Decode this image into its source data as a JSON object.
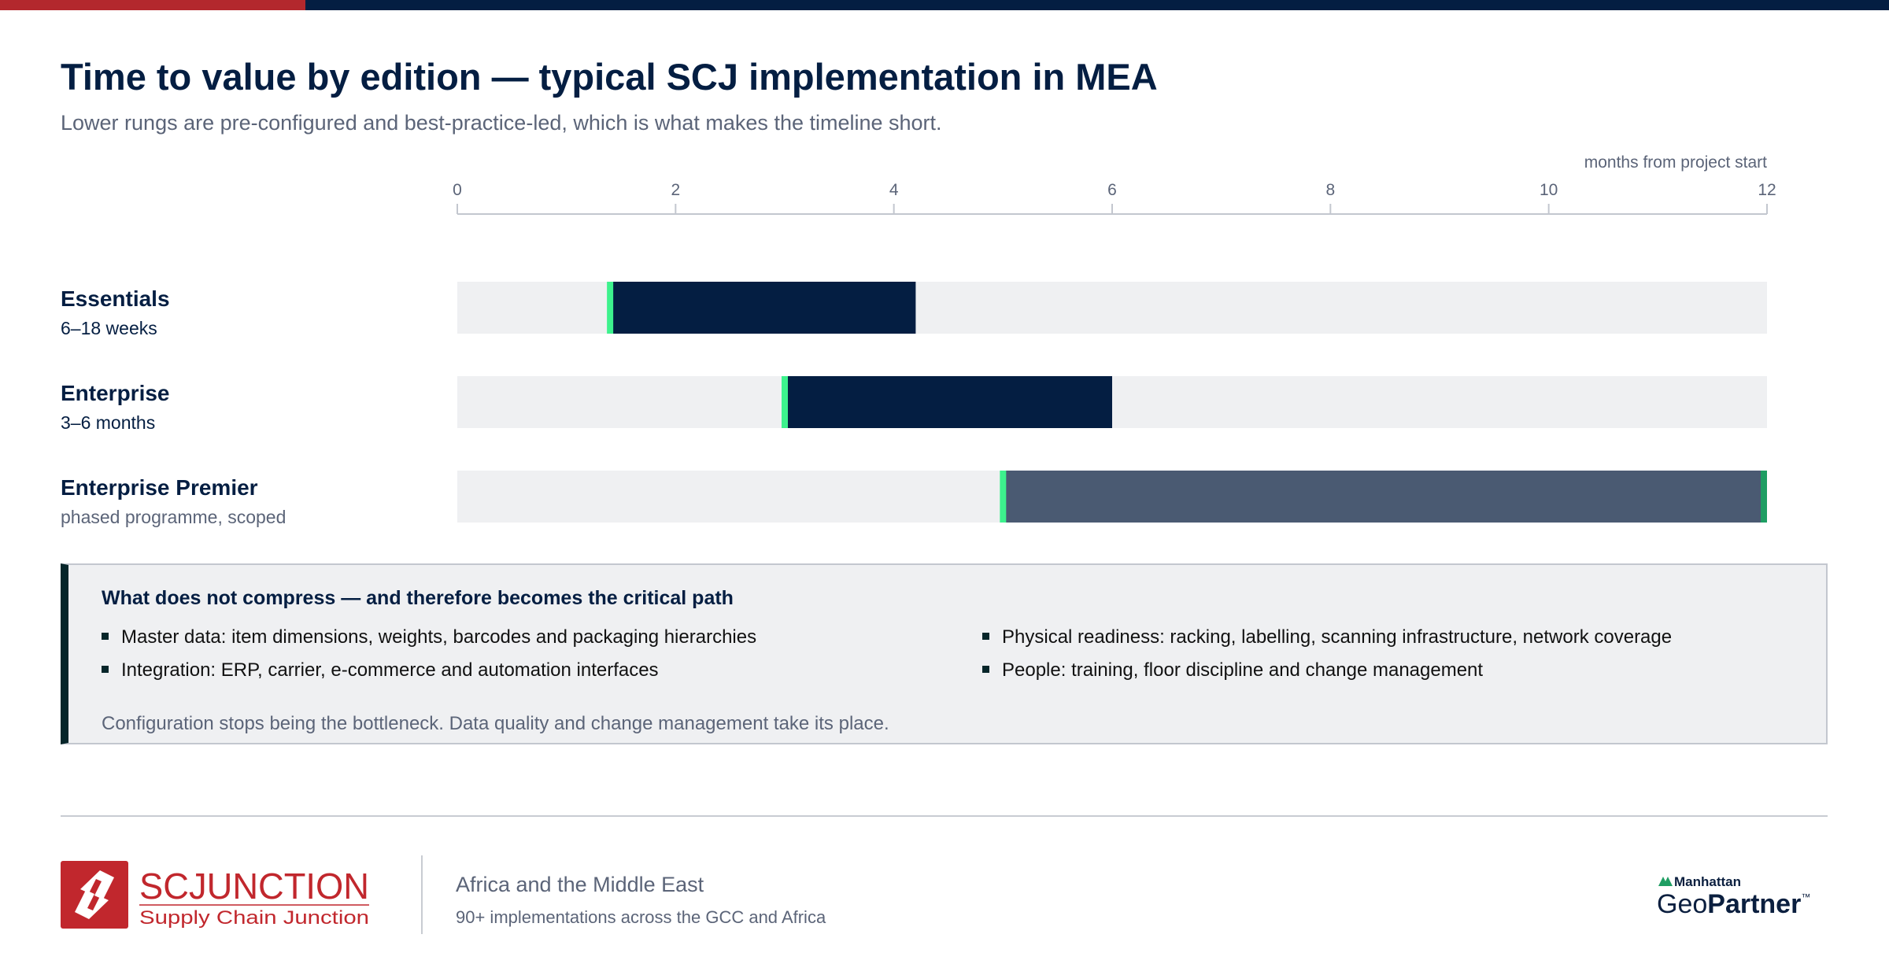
{
  "title": "Time to value by edition — typical SCJ implementation in MEA",
  "subtitle": "Lower rungs are pre-configured and best-practice-led, which is what makes the timeline short.",
  "chart_data": {
    "type": "bar",
    "orientation": "horizontal",
    "axis_label": "months from project start",
    "xlim": [
      0,
      12
    ],
    "ticks": [
      0,
      2,
      4,
      6,
      8,
      10,
      12
    ],
    "grid": false,
    "categories": [
      "Essentials",
      "Enterprise",
      "Enterprise Premier"
    ],
    "descriptions": [
      "6–18 weeks",
      "3–6 months",
      "phased programme, scoped"
    ],
    "ranges": [
      {
        "start": 1.4,
        "end": 4.2
      },
      {
        "start": 3.0,
        "end": 6.0
      },
      {
        "start": 5.0,
        "end": 12.0
      }
    ],
    "colors": {
      "track": "#eff0f2",
      "bar": "#041e42",
      "bar_phased": "#4a5a72",
      "start_marker": "#3df28d",
      "end_marker": "#1f9e63"
    }
  },
  "callout": {
    "title": "What does not compress — and therefore becomes the critical path",
    "bullets": [
      "Master data: item dimensions, weights, barcodes and packaging hierarchies",
      "Integration: ERP, carrier, e-commerce and automation interfaces",
      "Physical readiness: racking, labelling, scanning infrastructure, network coverage",
      "People: training, floor discipline and change management"
    ],
    "note": "Configuration stops being the bottleneck. Data quality and change management take its place."
  },
  "footer": {
    "logo_name": "SCJUNCTION",
    "logo_tagline": "Supply Chain Junction",
    "region": "Africa and the Middle East",
    "region_sub": "90+ implementations across the GCC and Africa",
    "partner_top": "Manhattan",
    "partner_geo": "Geo",
    "partner_main": "Partner",
    "partner_tm": "™"
  }
}
